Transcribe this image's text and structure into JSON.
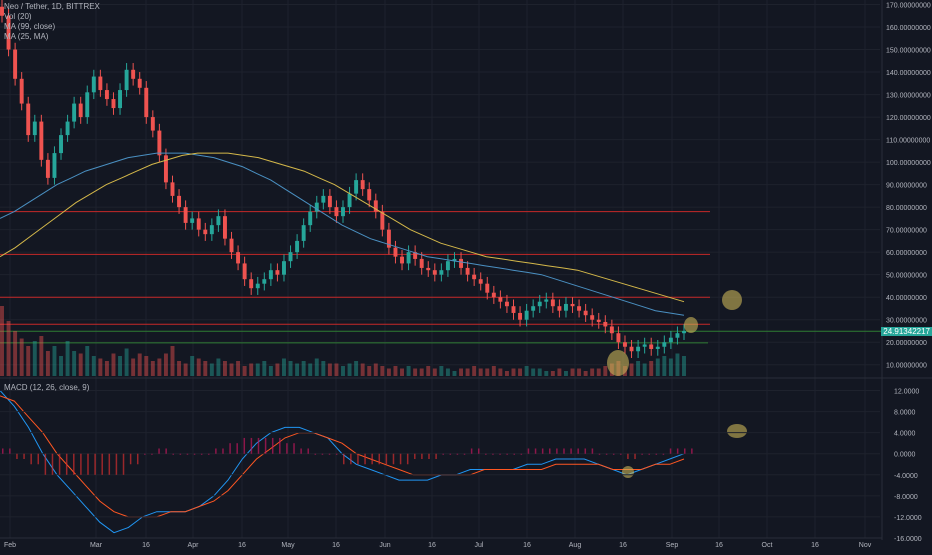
{
  "legend": {
    "symbol": "Neo / Tether, 1D, BITTREX",
    "vol": "Vol (20)",
    "ma1": "MA (99, close)",
    "ma2": "MA (25, MA)"
  },
  "macd_legend": "MACD (12, 26, close, 9)",
  "last_price": "24.91342217",
  "colors": {
    "background": "#131722",
    "up": "#26a69a",
    "down": "#ef5350",
    "ma99": "#4a90c2",
    "ma25": "#d4b84a",
    "hline_red": "#c62828",
    "hline_green": "#2e7d32",
    "macd_line": "#2196f3",
    "signal_line": "#ff5722",
    "highlight": "#c9b458"
  },
  "chart_data": [
    {
      "type": "candlestick",
      "title": "Neo / Tether, 1D, BITTREX",
      "y_axis_labels": [
        "170.00000000",
        "160.00000000",
        "150.00000000",
        "140.00000000",
        "130.00000000",
        "120.00000000",
        "110.00000000",
        "100.00000000",
        "90.00000000",
        "80.00000000",
        "70.00000000",
        "60.00000000",
        "50.00000000",
        "40.00000000",
        "30.00000000",
        "20.00000000",
        "10.00000000"
      ],
      "ylim": [
        5,
        172
      ],
      "x_axis_labels": [
        "Feb",
        "Mar",
        "16",
        "Apr",
        "16",
        "May",
        "16",
        "Jun",
        "16",
        "Jul",
        "16",
        "Aug",
        "16",
        "Sep",
        "16",
        "Oct",
        "16",
        "Nov"
      ],
      "horizontal_lines_red": [
        78,
        59,
        40,
        28
      ],
      "horizontal_lines_green": [
        24.9,
        19.7
      ],
      "close_series": [
        165,
        150,
        137,
        126,
        112,
        118,
        101,
        93,
        104,
        112,
        118,
        126,
        120,
        131,
        138,
        132,
        128,
        124,
        132,
        141,
        137,
        133,
        120,
        114,
        103,
        91,
        85,
        80,
        73,
        75,
        70,
        68,
        72,
        76,
        66,
        60,
        55,
        48,
        44,
        46,
        48,
        52,
        50,
        56,
        60,
        65,
        72,
        78,
        82,
        85,
        80,
        76,
        80,
        86,
        92,
        88,
        83,
        78,
        70,
        62,
        58,
        55,
        60,
        57,
        53,
        52,
        50,
        52,
        56,
        57,
        53,
        50,
        48,
        46,
        42,
        40,
        38,
        36,
        33,
        30,
        34,
        36,
        38,
        39,
        36,
        34,
        37,
        36,
        34,
        32,
        30,
        29,
        27,
        24,
        20,
        18,
        16,
        18,
        19,
        17,
        18,
        20,
        22,
        24,
        25
      ],
      "volume_series": [
        28,
        22,
        18,
        15,
        12,
        14,
        16,
        10,
        12,
        8,
        14,
        10,
        9,
        12,
        8,
        7,
        6,
        9,
        8,
        11,
        7,
        9,
        8,
        6,
        7,
        9,
        12,
        6,
        5,
        8,
        7,
        6,
        5,
        7,
        6,
        5,
        6,
        4,
        5,
        5,
        6,
        4,
        5,
        7,
        6,
        5,
        6,
        5,
        7,
        6,
        5,
        5,
        4,
        5,
        6,
        5,
        4,
        5,
        4,
        3,
        4,
        3,
        4,
        3,
        3,
        4,
        3,
        4,
        3,
        2,
        3,
        3,
        4,
        3,
        3,
        4,
        3,
        2,
        3,
        3,
        4,
        3,
        3,
        2,
        2,
        3,
        2,
        3,
        3,
        2,
        3,
        3,
        4,
        5,
        6,
        4,
        5,
        6,
        5,
        6,
        7,
        8,
        7,
        9,
        8
      ],
      "ma99": [
        75,
        78,
        82,
        86,
        90,
        93,
        96,
        98,
        100,
        102,
        103,
        104,
        104,
        104,
        103,
        102,
        100,
        98,
        95,
        92,
        88,
        84,
        80,
        76,
        72,
        69,
        66,
        64,
        62,
        60,
        58,
        57,
        56,
        55,
        54,
        53,
        52,
        51,
        50,
        48,
        46,
        44,
        42,
        40,
        38,
        36,
        34,
        33,
        32
      ],
      "ma25": [
        58,
        62,
        67,
        72,
        77,
        82,
        86,
        90,
        93,
        96,
        99,
        101,
        103,
        104,
        104,
        104,
        103,
        102,
        100,
        98,
        96,
        93,
        90,
        86,
        82,
        78,
        74,
        70,
        67,
        64,
        62,
        60,
        58,
        57,
        56,
        55,
        54,
        53,
        52,
        50,
        48,
        46,
        44,
        42,
        40,
        38
      ]
    },
    {
      "type": "bar",
      "title": "MACD (12, 26, close, 9)",
      "y_axis_labels": [
        "12.0000",
        "8.0000",
        "4.0000",
        "0.0000",
        "-4.0000",
        "-8.0000",
        "-12.0000",
        "-16.0000"
      ],
      "ylim": [
        -16,
        14
      ],
      "macd": [
        12,
        9,
        5,
        0,
        -4,
        -7,
        -10,
        -13,
        -15,
        -14,
        -12,
        -11,
        -11,
        -11,
        -10,
        -8,
        -5,
        -1,
        2,
        4,
        5,
        5,
        4,
        3,
        0,
        -2,
        -3,
        -4,
        -5,
        -5,
        -5,
        -4,
        -4,
        -3,
        -3,
        -3,
        -3,
        -2,
        -2,
        -1,
        -1,
        -1,
        -2,
        -3,
        -4,
        -3,
        -2,
        -1,
        0
      ],
      "signal": [
        11,
        10,
        7,
        4,
        0,
        -3,
        -6,
        -9,
        -11,
        -12,
        -12,
        -12,
        -11,
        -11,
        -10,
        -9,
        -7,
        -4,
        -1,
        1,
        3,
        4,
        4,
        3,
        2,
        0,
        -1,
        -2,
        -3,
        -4,
        -4,
        -4,
        -4,
        -4,
        -3,
        -3,
        -3,
        -3,
        -3,
        -2,
        -2,
        -2,
        -2,
        -3,
        -3,
        -3,
        -2,
        -2,
        -1
      ],
      "histogram": [
        1,
        -1,
        -2,
        -4,
        -4,
        -4,
        -4,
        -4,
        -4,
        -2,
        0,
        1,
        0,
        0,
        0,
        1,
        2,
        3,
        3,
        3,
        2,
        1,
        0,
        0,
        -2,
        -2,
        -2,
        -2,
        -2,
        -1,
        -1,
        0,
        0,
        1,
        0,
        0,
        0,
        1,
        1,
        1,
        1,
        1,
        0,
        0,
        -1,
        0,
        0,
        1,
        1
      ]
    }
  ]
}
